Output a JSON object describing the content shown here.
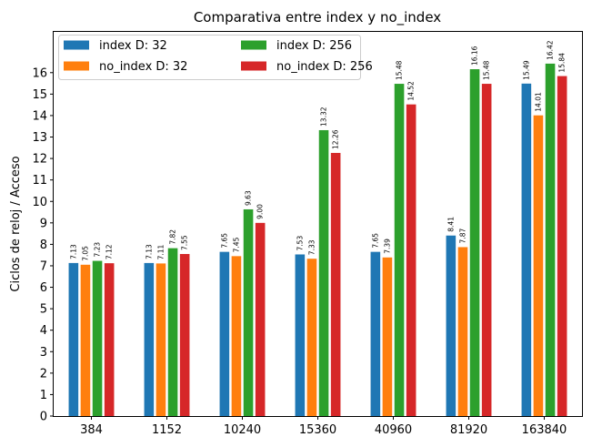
{
  "chart_data": {
    "type": "bar",
    "title": "Comparativa entre index y no_index",
    "xlabel": "",
    "ylabel": "Ciclos de reloj / Acceso",
    "categories": [
      "384",
      "1152",
      "10240",
      "15360",
      "40960",
      "81920",
      "163840"
    ],
    "series": [
      {
        "name": "index D: 32",
        "color": "#1f77b4",
        "values": [
          7.13,
          7.13,
          7.65,
          7.53,
          7.65,
          8.41,
          15.49
        ],
        "labels": [
          "7.13",
          "7.13",
          "7.65",
          "7.53",
          "7.65",
          "8.41",
          "15.49"
        ]
      },
      {
        "name": "no_index D: 32",
        "color": "#ff7f0e",
        "values": [
          7.05,
          7.11,
          7.45,
          7.33,
          7.39,
          7.87,
          14.01
        ],
        "labels": [
          "7.05",
          "7.11",
          "7.45",
          "7.33",
          "7.39",
          "7.87",
          "14.01"
        ]
      },
      {
        "name": "index D: 256",
        "color": "#2ca02c",
        "values": [
          7.23,
          7.82,
          9.63,
          13.32,
          15.48,
          16.16,
          16.42
        ],
        "labels": [
          "7.23",
          "7.82",
          "9.63",
          "13.32",
          "15.48",
          "16.16",
          "16.42"
        ]
      },
      {
        "name": "no_index D: 256",
        "color": "#d62728",
        "values": [
          7.12,
          7.55,
          9.0,
          12.26,
          14.52,
          15.48,
          15.84
        ],
        "labels": [
          "7.12",
          "7.55",
          "9.00",
          "12.26",
          "14.52",
          "15.48",
          "15.84"
        ]
      }
    ],
    "yticks": [
      "0",
      "1",
      "2",
      "3",
      "4",
      "5",
      "6",
      "7",
      "8",
      "9",
      "10",
      "11",
      "12",
      "13",
      "14",
      "15",
      "16"
    ],
    "ylim": [
      0,
      17.9
    ],
    "grid": false,
    "legend_position": "top-left"
  }
}
